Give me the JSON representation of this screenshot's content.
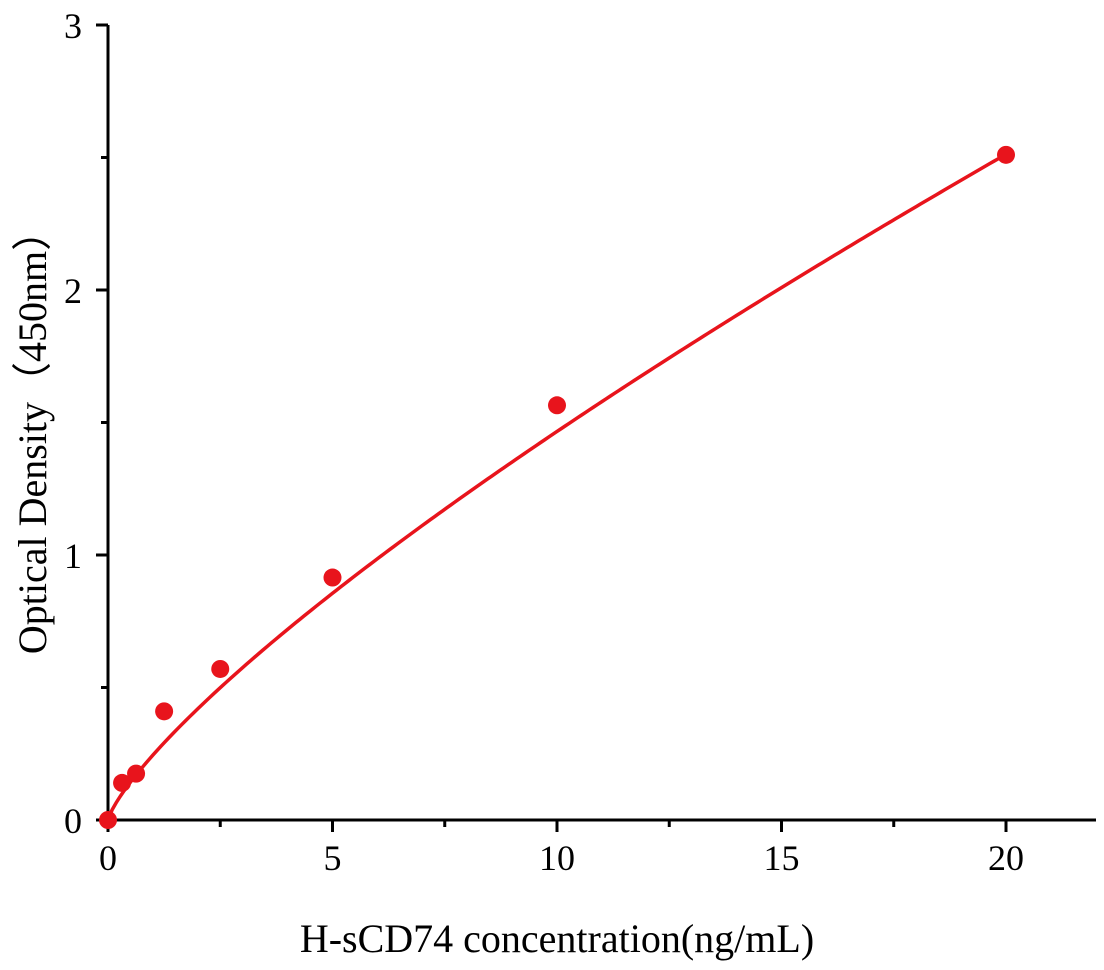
{
  "chart_data": {
    "type": "scatter",
    "title": "",
    "xlabel": "H-sCD74 concentration(ng/mL)",
    "ylabel": "Optical Density（450nm）",
    "xlim": [
      0,
      22
    ],
    "ylim": [
      0,
      3
    ],
    "x_ticks": [
      0,
      5,
      10,
      15,
      20
    ],
    "x_tick_labels": [
      "0",
      "5",
      "10",
      "15",
      "20"
    ],
    "x_minor_ticks": [
      2.5,
      7.5,
      12.5,
      17.5
    ],
    "y_ticks": [
      0,
      1,
      2,
      3
    ],
    "y_tick_labels": [
      "0",
      "1",
      "2",
      "3"
    ],
    "y_minor_ticks": [
      0.5,
      1.5,
      2.5
    ],
    "grid": false,
    "legend": "none",
    "color": "#e8141c",
    "series": [
      {
        "points": [
          {
            "x": 0,
            "y": 0.0
          },
          {
            "x": 0.313,
            "y": 0.14
          },
          {
            "x": 0.625,
            "y": 0.175
          },
          {
            "x": 1.25,
            "y": 0.41
          },
          {
            "x": 2.5,
            "y": 0.57
          },
          {
            "x": 5,
            "y": 0.915
          },
          {
            "x": 10,
            "y": 1.565
          },
          {
            "x": 20,
            "y": 2.51
          }
        ],
        "fit": {
          "kind": "power",
          "a": 0.245,
          "b": 0.777
        }
      }
    ]
  }
}
